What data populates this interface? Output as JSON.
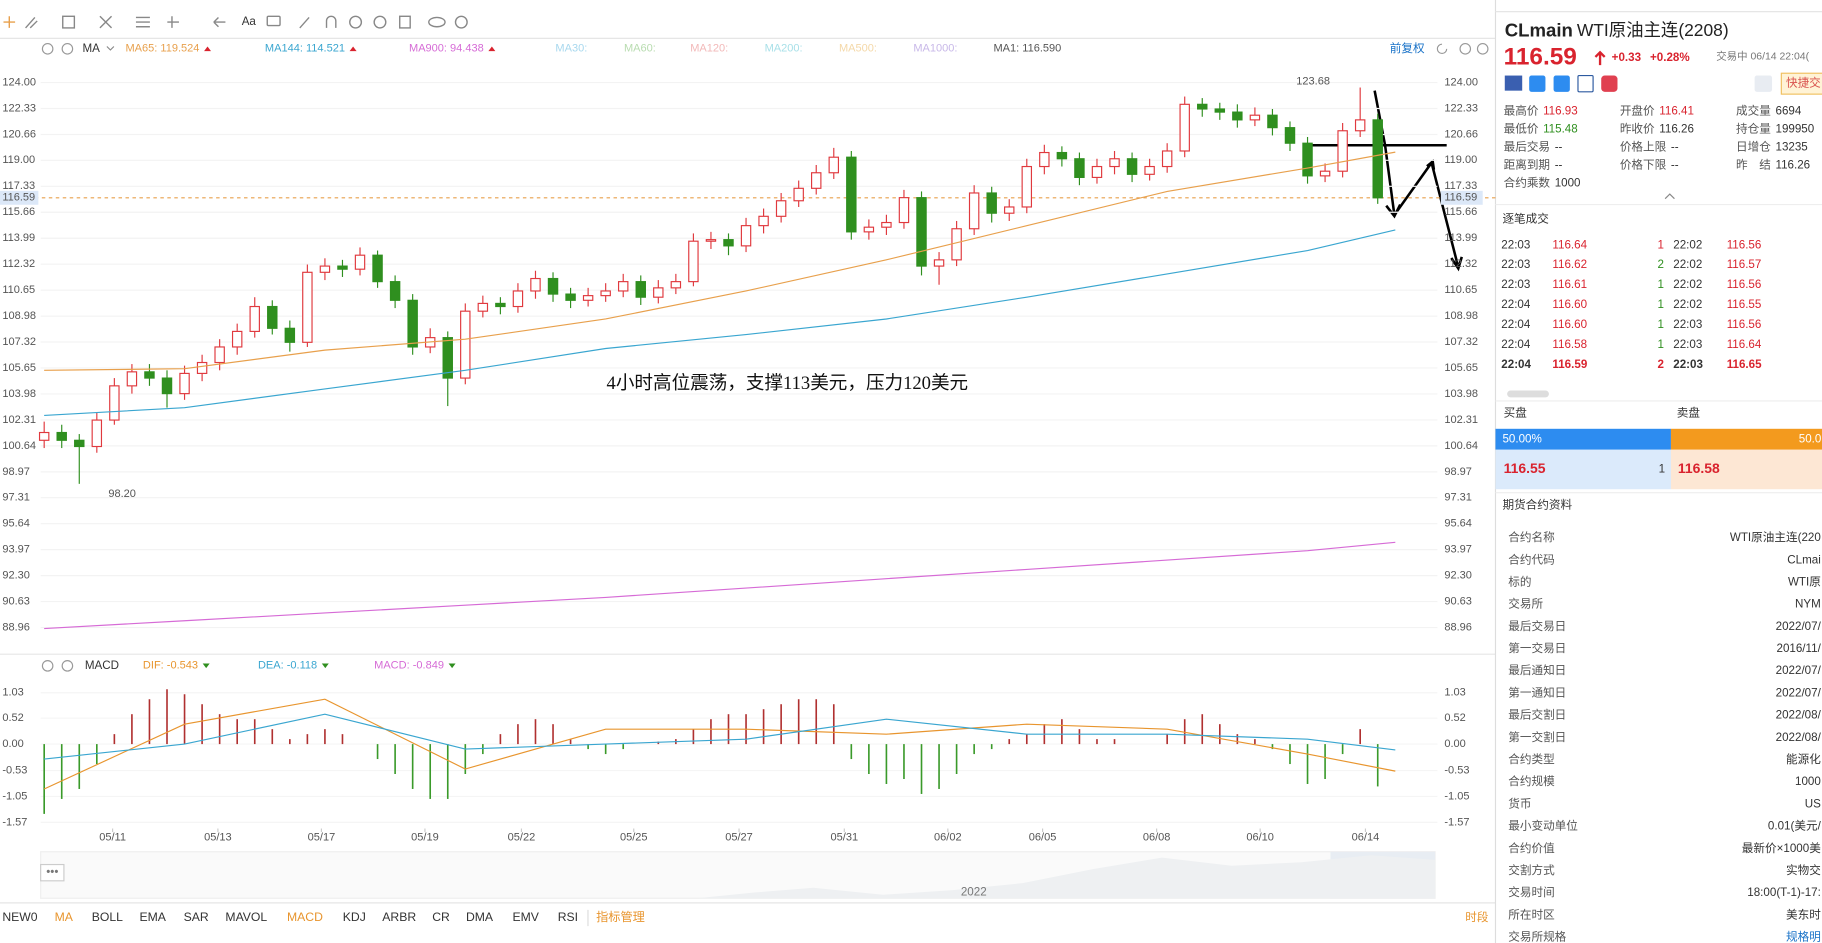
{
  "toolbar": {
    "font_button": "Aa"
  },
  "chart_header": {
    "indicator": "MA",
    "adjust": "前复权"
  },
  "annotation": "4小时高位震荡，支撑113美元，压力120美元",
  "chart_data": [
    {
      "type": "candlestick",
      "xlim": [
        -0.2,
        79.4
      ],
      "ylim": [
        87.47,
        125.57
      ],
      "yticks": [
        {
          "value": 124,
          "label": "124.00"
        },
        122.33,
        120.66,
        {
          "value": 119,
          "label": "119.00"
        },
        117.33,
        115.66,
        113.99,
        112.32,
        110.65,
        108.98,
        107.32,
        105.65,
        103.98,
        102.31,
        100.64,
        98.97,
        97.31,
        95.64,
        93.97,
        {
          "value": 92.3,
          "label": "92.30"
        },
        90.63,
        88.96
      ],
      "grid": true,
      "up_color": "#e0393e",
      "down_color": "#2f8f1f",
      "last_price": 116.59,
      "last_price_color": "#e8a04c",
      "extremes": [
        {
          "value": 123.68,
          "label": "123.68"
        },
        {
          "value": 98.2,
          "label": "98.20"
        }
      ],
      "candles": [
        [
          101.0,
          102.2,
          100.5,
          101.5
        ],
        [
          101.5,
          102.0,
          100.5,
          101.0
        ],
        [
          101.0,
          101.4,
          98.2,
          100.6
        ],
        [
          100.6,
          102.8,
          100.2,
          102.3
        ],
        [
          102.3,
          105.0,
          102.0,
          104.5
        ],
        [
          104.5,
          105.9,
          104.0,
          105.4
        ],
        [
          105.4,
          105.9,
          104.5,
          105.0
        ],
        [
          105.0,
          105.5,
          103.1,
          104.0
        ],
        [
          104.0,
          105.8,
          103.6,
          105.3
        ],
        [
          105.3,
          106.5,
          104.8,
          106.0
        ],
        [
          106.0,
          107.5,
          105.5,
          107.0
        ],
        [
          107.0,
          108.5,
          106.5,
          108.0
        ],
        [
          108.0,
          110.2,
          107.6,
          109.6
        ],
        [
          109.6,
          110.0,
          107.8,
          108.2
        ],
        [
          108.2,
          108.7,
          106.7,
          107.3
        ],
        [
          107.3,
          112.3,
          107.0,
          111.8
        ],
        [
          111.8,
          112.7,
          111.3,
          112.2
        ],
        [
          112.2,
          112.6,
          111.5,
          112.0
        ],
        [
          112.0,
          113.4,
          111.6,
          112.9
        ],
        [
          112.9,
          113.2,
          110.8,
          111.2
        ],
        [
          111.2,
          111.6,
          109.5,
          110.0
        ],
        [
          110.0,
          110.4,
          106.5,
          107.0
        ],
        [
          107.0,
          108.2,
          106.6,
          107.6
        ],
        [
          107.6,
          108.0,
          103.2,
          105.0
        ],
        [
          105.0,
          109.8,
          104.6,
          109.3
        ],
        [
          109.3,
          110.3,
          108.9,
          109.8
        ],
        [
          109.8,
          110.2,
          109.1,
          109.6
        ],
        [
          109.6,
          111.1,
          109.2,
          110.6
        ],
        [
          110.6,
          111.9,
          110.1,
          111.4
        ],
        [
          111.4,
          111.8,
          109.9,
          110.4
        ],
        [
          110.4,
          110.8,
          109.5,
          110.0
        ],
        [
          110.0,
          110.8,
          109.6,
          110.3
        ],
        [
          110.3,
          111.1,
          109.9,
          110.6
        ],
        [
          110.6,
          111.7,
          110.2,
          111.2
        ],
        [
          111.2,
          111.6,
          109.7,
          110.2
        ],
        [
          110.2,
          111.3,
          109.8,
          110.8
        ],
        [
          110.8,
          111.7,
          110.4,
          111.2
        ],
        [
          111.2,
          114.3,
          110.9,
          113.8
        ],
        [
          113.8,
          114.4,
          113.3,
          113.9
        ],
        [
          113.9,
          114.3,
          112.9,
          113.5
        ],
        [
          113.5,
          115.3,
          113.1,
          114.8
        ],
        [
          114.8,
          115.9,
          114.3,
          115.4
        ],
        [
          115.4,
          116.9,
          115.0,
          116.4
        ],
        [
          116.4,
          117.7,
          116.0,
          117.2
        ],
        [
          117.2,
          118.7,
          116.8,
          118.2
        ],
        [
          118.2,
          119.8,
          117.8,
          119.2
        ],
        [
          119.2,
          119.6,
          113.9,
          114.4
        ],
        [
          114.4,
          115.2,
          113.9,
          114.7
        ],
        [
          114.7,
          115.5,
          114.2,
          115.0
        ],
        [
          115.0,
          117.1,
          114.6,
          116.6
        ],
        [
          116.6,
          117.0,
          111.6,
          112.2
        ],
        [
          112.2,
          113.1,
          111.0,
          112.6
        ],
        [
          112.6,
          115.1,
          112.2,
          114.6
        ],
        [
          114.6,
          117.4,
          114.2,
          116.9
        ],
        [
          116.9,
          117.3,
          115.0,
          115.6
        ],
        [
          115.6,
          116.5,
          115.1,
          116.0
        ],
        [
          116.0,
          119.1,
          115.6,
          118.6
        ],
        [
          118.6,
          120.0,
          118.1,
          119.5
        ],
        [
          119.5,
          119.9,
          118.6,
          119.1
        ],
        [
          119.1,
          119.5,
          117.4,
          117.9
        ],
        [
          117.9,
          119.1,
          117.5,
          118.6
        ],
        [
          118.6,
          119.6,
          118.1,
          119.1
        ],
        [
          119.1,
          119.5,
          117.6,
          118.1
        ],
        [
          118.1,
          119.1,
          117.7,
          118.6
        ],
        [
          118.6,
          120.1,
          118.2,
          119.6
        ],
        [
          119.6,
          123.1,
          119.2,
          122.6
        ],
        [
          122.6,
          123.0,
          121.8,
          122.3
        ],
        [
          122.3,
          122.7,
          121.6,
          122.1
        ],
        [
          122.1,
          122.6,
          121.1,
          121.6
        ],
        [
          121.6,
          122.4,
          121.2,
          121.9
        ],
        [
          121.9,
          122.3,
          120.6,
          121.1
        ],
        [
          121.1,
          121.5,
          119.6,
          120.1
        ],
        [
          120.1,
          120.5,
          117.5,
          118.0
        ],
        [
          118.0,
          118.8,
          117.6,
          118.3
        ],
        [
          118.3,
          121.4,
          117.9,
          120.9
        ],
        [
          120.9,
          123.68,
          120.5,
          121.6
        ],
        [
          121.6,
          122.0,
          116.2,
          116.59
        ]
      ],
      "x": [
        0,
        8,
        16,
        24,
        32,
        40,
        48,
        56,
        64,
        72,
        77
      ],
      "series": [
        {
          "name": "MA65: 119.524",
          "color": "#e8a04c",
          "values": [
            105.5,
            105.6,
            106.8,
            107.5,
            108.8,
            110.6,
            112.6,
            114.8,
            117.0,
            118.5,
            119.524
          ]
        },
        {
          "name": "MA144: 114.521",
          "color": "#3aa6d0",
          "values": [
            102.6,
            103.1,
            104.3,
            105.5,
            106.9,
            107.8,
            108.8,
            110.2,
            111.7,
            113.2,
            114.521
          ]
        },
        {
          "name": "MA900: 94.438",
          "color": "#d66bd6",
          "values": [
            88.9,
            89.4,
            89.9,
            90.4,
            90.9,
            91.5,
            92.1,
            92.7,
            93.3,
            93.9,
            94.438
          ]
        }
      ],
      "other_ma": [
        {
          "name": "MA30:",
          "color": "#a8d8ee"
        },
        {
          "name": "MA60:",
          "color": "#b8dcb0"
        },
        {
          "name": "MA120:",
          "color": "#f2b8b8"
        },
        {
          "name": "MA200:",
          "color": "#a8e0e8"
        },
        {
          "name": "MA500:",
          "color": "#f4d8a8"
        },
        {
          "name": "MA1000:",
          "color": "#c8b8e8"
        },
        {
          "name": "MA1: 116.590",
          "color": "#555555"
        }
      ]
    },
    {
      "type": "macd",
      "title": "MACD",
      "xlim": [
        -0.2,
        79.4
      ],
      "ylim": [
        -1.74,
        1.29
      ],
      "yticks": [
        1.03,
        0.52,
        {
          "value": 0,
          "label": "0.00"
        },
        -0.53,
        -1.05,
        -1.57
      ],
      "xticks": [
        {
          "value": 3.9,
          "label": "05/11"
        },
        {
          "value": 9.9,
          "label": "05/13"
        },
        {
          "value": 15.8,
          "label": "05/17"
        },
        {
          "value": 21.7,
          "label": "05/19"
        },
        {
          "value": 27.2,
          "label": "05/22"
        },
        {
          "value": 33.6,
          "label": "05/25"
        },
        {
          "value": 39.6,
          "label": "05/27"
        },
        {
          "value": 45.6,
          "label": "05/31"
        },
        {
          "value": 51.5,
          "label": "06/02"
        },
        {
          "value": 56.9,
          "label": "06/05"
        },
        {
          "value": 63.4,
          "label": "06/08"
        },
        {
          "value": 69.3,
          "label": "06/10"
        },
        {
          "value": 75.3,
          "label": "06/14"
        }
      ],
      "x": [
        0,
        8,
        16,
        24,
        32,
        40,
        48,
        56,
        64,
        72,
        77
      ],
      "series": [
        {
          "name": "DIF: -0.543",
          "color": "#e8952e",
          "values": [
            -0.9,
            0.4,
            0.9,
            -0.5,
            0.3,
            0.3,
            0.2,
            0.4,
            0.3,
            -0.2,
            -0.543
          ]
        },
        {
          "name": "DEA: -0.118",
          "color": "#3aa6d0",
          "values": [
            -0.3,
            0.0,
            0.6,
            -0.1,
            0.0,
            0.1,
            0.5,
            0.2,
            0.2,
            0.1,
            -0.118
          ]
        }
      ],
      "histogram": {
        "name": "MACD: -0.849",
        "color": "#d66bd6",
        "up_color": "#b03030",
        "down_color": "#3a9a2a",
        "values": [
          -1.4,
          -1.1,
          -0.9,
          -0.4,
          0.2,
          0.6,
          0.9,
          1.1,
          1.0,
          0.8,
          0.6,
          0.5,
          0.5,
          0.3,
          0.1,
          0.2,
          0.3,
          0.2,
          0.0,
          -0.3,
          -0.6,
          -0.9,
          -1.1,
          -1.1,
          -0.6,
          -0.2,
          0.2,
          0.4,
          0.5,
          0.4,
          0.1,
          -0.1,
          -0.2,
          -0.1,
          0.0,
          0.05,
          0.1,
          0.3,
          0.5,
          0.6,
          0.6,
          0.7,
          0.8,
          0.9,
          0.9,
          0.8,
          -0.3,
          -0.6,
          -0.8,
          -0.7,
          -1.0,
          -0.9,
          -0.6,
          -0.2,
          -0.1,
          0.1,
          0.2,
          0.4,
          0.5,
          0.3,
          0.1,
          0.1,
          0.0,
          0.0,
          0.2,
          0.5,
          0.6,
          0.4,
          0.2,
          0.1,
          -0.1,
          -0.4,
          -0.8,
          -0.7,
          -0.2,
          0.3,
          -0.849
        ]
      }
    }
  ],
  "timeline_year": "2022",
  "indicator_tabs": [
    "NEW0",
    "MA",
    "BOLL",
    "EMA",
    "SAR",
    "MAVOL",
    "MACD",
    "KDJ",
    "ARBR",
    "CR",
    "DMA",
    "EMV",
    "RSI"
  ],
  "indicator_manage": "指标管理",
  "period": "时段",
  "quote": {
    "symbol": "CLmain",
    "name": "WTI原油主连(2208)",
    "price": "116.59",
    "change": "+0.33",
    "change_pct": "+0.28%",
    "status": "交易中 06/14 22:04(",
    "fast_trade": "快捷交",
    "stats": [
      [
        "最高价",
        "116.93"
      ],
      [
        "开盘价",
        "116.41"
      ],
      [
        "成交量",
        "6694"
      ],
      [
        "最低价",
        "115.48"
      ],
      [
        "昨收价",
        "116.26"
      ],
      [
        "持仓量",
        "199950"
      ],
      [
        "最后交易",
        "--"
      ],
      [
        "价格上限",
        "--"
      ],
      [
        "日增仓",
        "13235"
      ],
      [
        "距离到期",
        "--"
      ],
      [
        "价格下限",
        "--"
      ],
      [
        "昨　结",
        "116.26"
      ],
      [
        "合约乘数",
        "1000"
      ]
    ]
  },
  "trades": {
    "title": "逐笔成交",
    "rows": [
      [
        "22:03",
        "116.64",
        "1",
        "22:02",
        "116.56"
      ],
      [
        "22:03",
        "116.62",
        "2",
        "22:02",
        "116.57"
      ],
      [
        "22:03",
        "116.61",
        "1",
        "22:02",
        "116.56"
      ],
      [
        "22:04",
        "116.60",
        "1",
        "22:02",
        "116.55"
      ],
      [
        "22:04",
        "116.60",
        "1",
        "22:03",
        "116.56"
      ],
      [
        "22:04",
        "116.58",
        "1",
        "22:03",
        "116.64"
      ],
      [
        "22:04",
        "116.59",
        "2",
        "22:03",
        "116.65"
      ]
    ]
  },
  "order_book": {
    "bid_label": "买盘",
    "ask_label": "卖盘",
    "bid_pct": "50.00%",
    "ask_pct": "50.0",
    "bid": "116.55",
    "bid_vol": "1",
    "ask": "116.58"
  },
  "contract": {
    "title": "期货合约资料",
    "rows": [
      [
        "合约名称",
        "WTI原油主连(220"
      ],
      [
        "合约代码",
        "CLmai"
      ],
      [
        "标的",
        "WTI原"
      ],
      [
        "交易所",
        "NYM"
      ],
      [
        "最后交易日",
        "2022/07/"
      ],
      [
        "第一交易日",
        "2016/11/"
      ],
      [
        "最后通知日",
        "2022/07/"
      ],
      [
        "第一通知日",
        "2022/07/"
      ],
      [
        "最后交割日",
        "2022/08/"
      ],
      [
        "第一交割日",
        "2022/08/"
      ],
      [
        "合约类型",
        "能源化"
      ],
      [
        "合约规模",
        "1000"
      ],
      [
        "货币",
        "US"
      ],
      [
        "最小变动单位",
        "0.01(美元/"
      ],
      [
        "合约价值",
        "最新价×1000美"
      ],
      [
        "交割方式",
        "实物交"
      ],
      [
        "交易时间",
        "18:00(T-1)-17:"
      ],
      [
        "所在时区",
        "美东时"
      ],
      [
        "交易所规格",
        "规格明"
      ]
    ]
  }
}
